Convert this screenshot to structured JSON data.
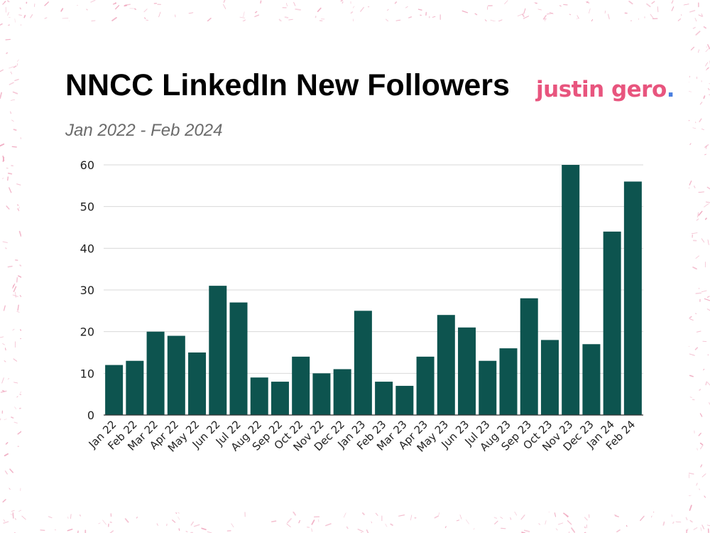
{
  "brand": {
    "logo_text": "justin gero",
    "logo_dot": ".",
    "logo_color": "#e8557e",
    "dot_color": "#4a7fe0",
    "speckle_color": "#f0a8bf"
  },
  "chart_data": {
    "type": "bar",
    "title": "NNCC LinkedIn New Followers",
    "subtitle": "Jan 2022 - Feb 2024",
    "xlabel": "",
    "ylabel": "",
    "ylim": [
      0,
      60
    ],
    "yticks": [
      0,
      10,
      20,
      30,
      40,
      50,
      60
    ],
    "grid": true,
    "legend": "none",
    "bar_color": "#0d544f",
    "categories": [
      "Jan 22",
      "Feb 22",
      "Mar 22",
      "Apr 22",
      "May 22",
      "Jun 22",
      "Jul 22",
      "Aug 22",
      "Sep 22",
      "Oct 22",
      "Nov 22",
      "Dec 22",
      "Jan 23",
      "Feb 23",
      "Mar 23",
      "Apr 23",
      "May 23",
      "Jun 23",
      "Jul 23",
      "Aug 23",
      "Sep 23",
      "Oct 23",
      "Nov 23",
      "Dec 23",
      "Jan 24",
      "Feb 24"
    ],
    "values": [
      12,
      13,
      20,
      19,
      15,
      31,
      27,
      9,
      8,
      14,
      10,
      11,
      25,
      8,
      7,
      14,
      24,
      21,
      13,
      16,
      28,
      18,
      60,
      17,
      44,
      56
    ]
  }
}
